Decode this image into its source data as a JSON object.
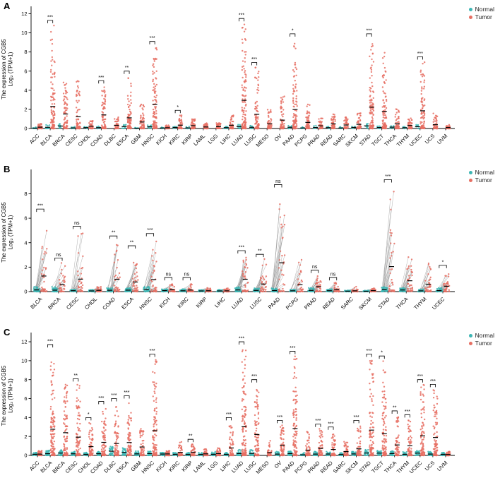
{
  "figure": {
    "legend": {
      "normal": "Normal",
      "tumor": "Tumor"
    },
    "colors": {
      "normal": "#3db6b4",
      "tumor": "#e66f63",
      "axis": "#000000",
      "pair_line": "#333333"
    },
    "ylabel_line1": "The expression of CGB5",
    "ylabel_line2": "Log₂ (TPM+1)"
  },
  "chart_data": [
    {
      "panel": "A",
      "type": "scatter",
      "title": "",
      "xlabel": "",
      "ylabel": "The expression of CGB5 Log₂ (TPM+1)",
      "paired": false,
      "normal_n": 10,
      "ylim": [
        0,
        12.4
      ],
      "yticks": [
        0,
        2,
        4,
        6,
        8,
        10,
        12
      ],
      "legend_position": "top-right",
      "categories": [
        {
          "name": "ACC",
          "normal_max": 0.15,
          "tumor_max": 0.5,
          "sig": null
        },
        {
          "name": "BLCA",
          "normal_max": 0.5,
          "tumor_max": 10.8,
          "sig": "***"
        },
        {
          "name": "BRCA",
          "normal_max": 0.5,
          "tumor_max": 5.5,
          "sig": null
        },
        {
          "name": "CESC",
          "normal_max": 0.3,
          "tumor_max": 5.0,
          "sig": null
        },
        {
          "name": "CHOL",
          "normal_max": 0.2,
          "tumor_max": 0.8,
          "sig": null
        },
        {
          "name": "COAD",
          "normal_max": 0.3,
          "tumor_max": 4.5,
          "sig": "***"
        },
        {
          "name": "DLBC",
          "normal_max": 0,
          "tumor_max": 1.2,
          "sig": null
        },
        {
          "name": "ESCA",
          "normal_max": 0.4,
          "tumor_max": 5.5,
          "sig": "**"
        },
        {
          "name": "GBM",
          "normal_max": 0.1,
          "tumor_max": 2.6,
          "sig": null
        },
        {
          "name": "HNSC",
          "normal_max": 0.5,
          "tumor_max": 8.6,
          "sig": "***"
        },
        {
          "name": "KICH",
          "normal_max": 0.2,
          "tumor_max": 0.4,
          "sig": null
        },
        {
          "name": "KIRC",
          "normal_max": 0.2,
          "tumor_max": 1.4,
          "sig": "*"
        },
        {
          "name": "KIRP",
          "normal_max": 0.2,
          "tumor_max": 1.0,
          "sig": null
        },
        {
          "name": "LAML",
          "normal_max": 0,
          "tumor_max": 0.6,
          "sig": null
        },
        {
          "name": "LGG",
          "normal_max": 0,
          "tumor_max": 0.6,
          "sig": null
        },
        {
          "name": "LIHC",
          "normal_max": 0.2,
          "tumor_max": 1.6,
          "sig": null
        },
        {
          "name": "LUAD",
          "normal_max": 0.5,
          "tumor_max": 11.0,
          "sig": "***"
        },
        {
          "name": "LUSC",
          "normal_max": 0.4,
          "tumor_max": 6.4,
          "sig": "***"
        },
        {
          "name": "MESO",
          "normal_max": 0,
          "tumor_max": 2.0,
          "sig": null
        },
        {
          "name": "OV",
          "normal_max": 0,
          "tumor_max": 3.6,
          "sig": null
        },
        {
          "name": "PAAD",
          "normal_max": 0.3,
          "tumor_max": 9.4,
          "sig": "*"
        },
        {
          "name": "PCPG",
          "normal_max": 0.2,
          "tumor_max": 2.6,
          "sig": null
        },
        {
          "name": "PRAD",
          "normal_max": 0.3,
          "tumor_max": 1.2,
          "sig": null
        },
        {
          "name": "READ",
          "normal_max": 0.2,
          "tumor_max": 1.6,
          "sig": null
        },
        {
          "name": "SARC",
          "normal_max": 0.2,
          "tumor_max": 1.2,
          "sig": null
        },
        {
          "name": "SKCM",
          "normal_max": 0.2,
          "tumor_max": 1.6,
          "sig": null
        },
        {
          "name": "STAD",
          "normal_max": 0.5,
          "tumor_max": 9.4,
          "sig": "***"
        },
        {
          "name": "TGCT",
          "normal_max": 0.3,
          "tumor_max": 8.6,
          "sig": null
        },
        {
          "name": "THCA",
          "normal_max": 0.3,
          "tumor_max": 2.2,
          "sig": null
        },
        {
          "name": "THYM",
          "normal_max": 0.2,
          "tumor_max": 1.2,
          "sig": null
        },
        {
          "name": "UCEC",
          "normal_max": 0.4,
          "tumor_max": 7.0,
          "sig": "***"
        },
        {
          "name": "UCS",
          "normal_max": 0,
          "tumor_max": 1.6,
          "sig": null
        },
        {
          "name": "UVM",
          "normal_max": 0,
          "tumor_max": 0.4,
          "sig": null
        }
      ]
    },
    {
      "panel": "B",
      "type": "scatter",
      "title": "",
      "xlabel": "",
      "ylabel": "The expression of CGB5 Log₂ (TPM+1)",
      "paired": true,
      "pairs": 35,
      "ylim": [
        0,
        9.7
      ],
      "yticks": [
        0,
        2,
        4,
        6,
        8
      ],
      "legend_position": "top-right",
      "categories": [
        {
          "name": "BLCA",
          "normal_max": 0.4,
          "tumor_max": 6.4,
          "sig": "***"
        },
        {
          "name": "BRCA",
          "normal_max": 0.4,
          "tumor_max": 2.4,
          "sig": "ns"
        },
        {
          "name": "CESC",
          "normal_max": 0.2,
          "tumor_max": 5.0,
          "sig": "ns"
        },
        {
          "name": "CHOL",
          "normal_max": 0.15,
          "tumor_max": 0.4,
          "sig": null
        },
        {
          "name": "COAD",
          "normal_max": 0.3,
          "tumor_max": 4.2,
          "sig": "**"
        },
        {
          "name": "ESCA",
          "normal_max": 0.3,
          "tumor_max": 3.4,
          "sig": "**"
        },
        {
          "name": "HNSC",
          "normal_max": 0.4,
          "tumor_max": 4.4,
          "sig": "***"
        },
        {
          "name": "KICH",
          "normal_max": 0.2,
          "tumor_max": 0.8,
          "sig": "ns"
        },
        {
          "name": "KIRC",
          "normal_max": 0.2,
          "tumor_max": 0.8,
          "sig": "ns"
        },
        {
          "name": "KIRP",
          "normal_max": 0.15,
          "tumor_max": 0.4,
          "sig": null
        },
        {
          "name": "LIHC",
          "normal_max": 0.15,
          "tumor_max": 0.4,
          "sig": null
        },
        {
          "name": "LUAD",
          "normal_max": 0.4,
          "tumor_max": 3.0,
          "sig": "***"
        },
        {
          "name": "LUSC",
          "normal_max": 0.3,
          "tumor_max": 2.7,
          "sig": "**"
        },
        {
          "name": "PAAD",
          "normal_max": 0.3,
          "tumor_max": 8.4,
          "sig": "ns"
        },
        {
          "name": "PCPG",
          "normal_max": 0.2,
          "tumor_max": 2.6,
          "sig": null
        },
        {
          "name": "PRAD",
          "normal_max": 0.3,
          "tumor_max": 1.4,
          "sig": "ns"
        },
        {
          "name": "READ",
          "normal_max": 0.2,
          "tumor_max": 0.8,
          "sig": "ns"
        },
        {
          "name": "SARC",
          "normal_max": 0.1,
          "tumor_max": 0.4,
          "sig": null
        },
        {
          "name": "SKCM",
          "normal_max": 0.1,
          "tumor_max": 0.3,
          "sig": null
        },
        {
          "name": "STAD",
          "normal_max": 0.4,
          "tumor_max": 8.8,
          "sig": "***"
        },
        {
          "name": "THCA",
          "normal_max": 0.3,
          "tumor_max": 3.0,
          "sig": null
        },
        {
          "name": "THYM",
          "normal_max": 0.2,
          "tumor_max": 2.4,
          "sig": null
        },
        {
          "name": "UCEC",
          "normal_max": 0.3,
          "tumor_max": 1.8,
          "sig": "*"
        }
      ]
    },
    {
      "panel": "C",
      "type": "scatter",
      "title": "",
      "xlabel": "",
      "ylabel": "The expression of CGB5 Log₂ (TPM+1)",
      "paired": false,
      "normal_n": 30,
      "ylim": [
        0,
        12.6
      ],
      "yticks": [
        0,
        2,
        4,
        6,
        8,
        10,
        12
      ],
      "legend_position": "top-right",
      "categories": [
        {
          "name": "ACC",
          "normal_max": 0.3,
          "tumor_max": 0.5,
          "sig": null
        },
        {
          "name": "BLCA",
          "normal_max": 0.6,
          "tumor_max": 11.2,
          "sig": "***"
        },
        {
          "name": "BRCA",
          "normal_max": 0.6,
          "tumor_max": 8.0,
          "sig": null
        },
        {
          "name": "CESC",
          "normal_max": 0.4,
          "tumor_max": 7.6,
          "sig": "**"
        },
        {
          "name": "CHOL",
          "normal_max": 0.3,
          "tumor_max": 3.5,
          "sig": "*"
        },
        {
          "name": "COAD",
          "normal_max": 0.4,
          "tumor_max": 5.2,
          "sig": "***"
        },
        {
          "name": "DLBC",
          "normal_max": 1.0,
          "tumor_max": 5.5,
          "sig": "***"
        },
        {
          "name": "ESCA",
          "normal_max": 0.8,
          "tumor_max": 5.8,
          "sig": "***"
        },
        {
          "name": "GBM",
          "normal_max": 0.5,
          "tumor_max": 3.0,
          "sig": null
        },
        {
          "name": "HNSC",
          "normal_max": 0.5,
          "tumor_max": 10.2,
          "sig": "***"
        },
        {
          "name": "KICH",
          "normal_max": 0.3,
          "tumor_max": 0.5,
          "sig": null
        },
        {
          "name": "KIRC",
          "normal_max": 0.3,
          "tumor_max": 1.5,
          "sig": null
        },
        {
          "name": "KIRP",
          "normal_max": 0.3,
          "tumor_max": 1.2,
          "sig": "**"
        },
        {
          "name": "LAML",
          "normal_max": 0.3,
          "tumor_max": 0.8,
          "sig": null
        },
        {
          "name": "LGG",
          "normal_max": 0.4,
          "tumor_max": 0.8,
          "sig": null
        },
        {
          "name": "LIHC",
          "normal_max": 0.3,
          "tumor_max": 3.5,
          "sig": "***"
        },
        {
          "name": "LUAD",
          "normal_max": 0.6,
          "tumor_max": 11.5,
          "sig": "***"
        },
        {
          "name": "LUSC",
          "normal_max": 0.6,
          "tumor_max": 7.5,
          "sig": "***"
        },
        {
          "name": "MESO",
          "normal_max": 0,
          "tumor_max": 1.8,
          "sig": null
        },
        {
          "name": "OV",
          "normal_max": 0.4,
          "tumor_max": 3.2,
          "sig": "***"
        },
        {
          "name": "PAAD",
          "normal_max": 0.5,
          "tumor_max": 10.5,
          "sig": "***"
        },
        {
          "name": "PCPG",
          "normal_max": 0.3,
          "tumor_max": 2.5,
          "sig": null
        },
        {
          "name": "PRAD",
          "normal_max": 0.4,
          "tumor_max": 2.8,
          "sig": "***"
        },
        {
          "name": "READ",
          "normal_max": 0.4,
          "tumor_max": 2.5,
          "sig": "***"
        },
        {
          "name": "SARC",
          "normal_max": 0.3,
          "tumor_max": 1.5,
          "sig": null
        },
        {
          "name": "SKCM",
          "normal_max": 0.4,
          "tumor_max": 3.2,
          "sig": "***"
        },
        {
          "name": "STAD",
          "normal_max": 0.6,
          "tumor_max": 10.2,
          "sig": "***"
        },
        {
          "name": "TGCT",
          "normal_max": 0.5,
          "tumor_max": 10.0,
          "sig": "*"
        },
        {
          "name": "THCA",
          "normal_max": 0.5,
          "tumor_max": 4.2,
          "sig": "**"
        },
        {
          "name": "THYM",
          "normal_max": 0.4,
          "tumor_max": 3.8,
          "sig": "***"
        },
        {
          "name": "UCEC",
          "normal_max": 0.5,
          "tumor_max": 7.5,
          "sig": "***"
        },
        {
          "name": "UCS",
          "normal_max": 0.4,
          "tumor_max": 7.0,
          "sig": "***"
        },
        {
          "name": "UVM",
          "normal_max": 0.3,
          "tumor_max": 0.4,
          "sig": null
        }
      ]
    }
  ]
}
